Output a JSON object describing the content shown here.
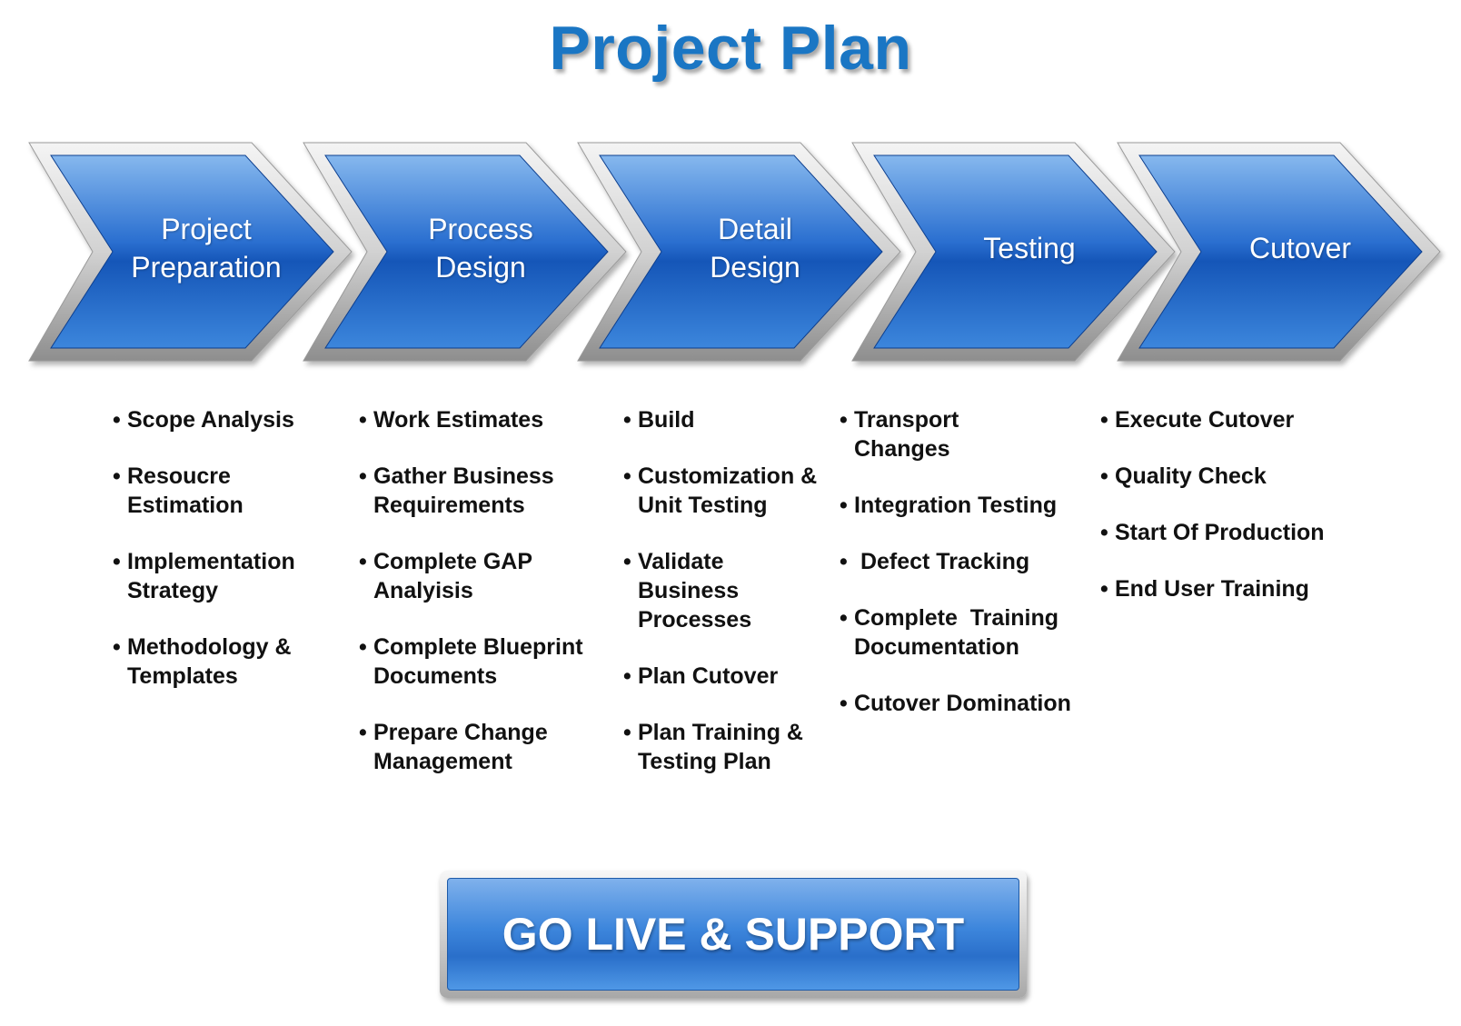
{
  "title": "Project Plan",
  "phases": [
    {
      "lines": [
        "Project",
        "Preparation"
      ]
    },
    {
      "lines": [
        "Process",
        "Design"
      ]
    },
    {
      "lines": [
        "Detail",
        "Design"
      ]
    },
    {
      "lines": [
        "Testing"
      ]
    },
    {
      "lines": [
        "Cutover"
      ]
    }
  ],
  "tasks": [
    [
      "Scope Analysis",
      "Resoucre Estimation",
      "Implementation Strategy",
      "Methodology & Templates"
    ],
    [
      "Work Estimates",
      "Gather Business Requirements",
      "Complete GAP Analyisis",
      "Complete Blueprint Documents",
      "Prepare Change Management"
    ],
    [
      "Build",
      "Customization & Unit Testing",
      "Validate Business Processes",
      "Plan Cutover",
      "Plan Training & Testing Plan"
    ],
    [
      "Transport Changes",
      "Integration Testing",
      " Defect Tracking",
      "Complete  Training Documentation",
      "Cutover Domination"
    ],
    [
      "Execute Cutover",
      "Quality Check",
      "Start Of Production",
      "End User Training"
    ]
  ],
  "go_live": "GO LIVE & SUPPORT",
  "colors": {
    "title": "#1a76c4",
    "chevron_top": "#7fb3ec",
    "chevron_mid": "#1f63c6",
    "chevron_bottom": "#0d47a6",
    "chevron_frame": "#c9c9c9"
  }
}
